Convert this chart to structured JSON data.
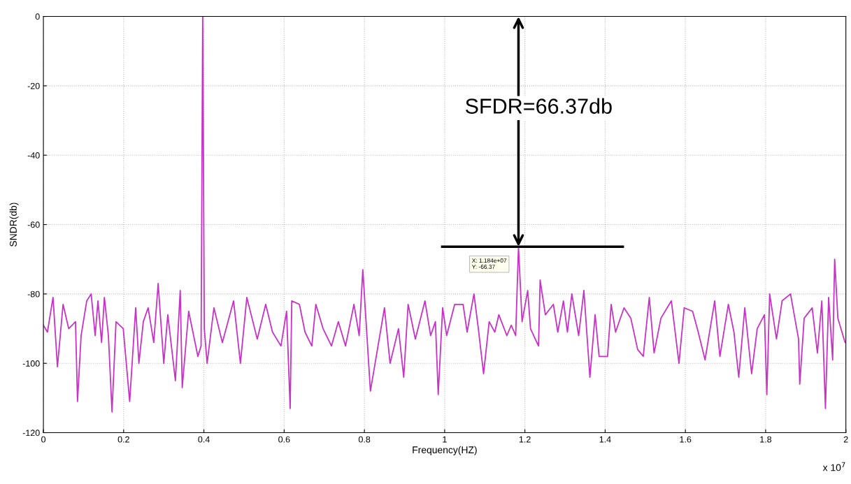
{
  "chart_data": {
    "type": "line",
    "xlabel": "Frequency(HZ)",
    "ylabel": "SNDR(db)",
    "annotations": [
      "SFDR=66.37db",
      {
        "text": "X: 1.184e+07\nY: -66.37",
        "x": 1.184,
        "y": -66.37
      },
      "x 10$^{7}$"
    ],
    "xlim": [
      0,
      2
    ],
    "ylim": [
      -120,
      0
    ],
    "xticks": [
      0,
      0.2,
      0.4,
      0.6,
      0.8,
      1,
      1.2,
      1.4,
      1.6,
      1.8,
      2
    ],
    "yticks": [
      -120,
      -100,
      -80,
      -60,
      -40,
      -20,
      0
    ],
    "grid": true,
    "line_style": "solid",
    "series": [
      {
        "color": "#c633c6",
        "x": [
          0,
          0.01,
          0.024,
          0.035,
          0.049,
          0.063,
          0.08,
          0.085,
          0.094,
          0.108,
          0.119,
          0.129,
          0.136,
          0.145,
          0.152,
          0.162,
          0.171,
          0.181,
          0.199,
          0.215,
          0.23,
          0.238,
          0.249,
          0.261,
          0.275,
          0.286,
          0.3,
          0.31,
          0.329,
          0.341,
          0.346,
          0.362,
          0.385,
          0.393,
          0.397,
          0.401,
          0.408,
          0.425,
          0.446,
          0.474,
          0.491,
          0.507,
          0.533,
          0.554,
          0.571,
          0.592,
          0.606,
          0.615,
          0.619,
          0.638,
          0.652,
          0.669,
          0.679,
          0.697,
          0.718,
          0.735,
          0.753,
          0.774,
          0.787,
          0.796,
          0.815,
          0.85,
          0.864,
          0.885,
          0.898,
          0.909,
          0.927,
          0.951,
          0.965,
          0.977,
          0.984,
          0.995,
          1.005,
          1.025,
          1.046,
          1.056,
          1.073,
          1.084,
          1.097,
          1.111,
          1.125,
          1.135,
          1.155,
          1.166,
          1.177,
          1.184,
          1.193,
          1.207,
          1.214,
          1.234,
          1.238,
          1.251,
          1.271,
          1.282,
          1.296,
          1.306,
          1.317,
          1.334,
          1.347,
          1.362,
          1.375,
          1.385,
          1.406,
          1.415,
          1.426,
          1.447,
          1.464,
          1.481,
          1.495,
          1.51,
          1.522,
          1.539,
          1.565,
          1.584,
          1.597,
          1.618,
          1.632,
          1.649,
          1.673,
          1.686,
          1.707,
          1.721,
          1.733,
          1.748,
          1.765,
          1.779,
          1.797,
          1.803,
          1.81,
          1.827,
          1.841,
          1.862,
          1.882,
          1.885,
          1.896,
          1.916,
          1.929,
          1.94,
          1.949,
          1.957,
          1.967,
          1.972,
          1.98,
          1.998
        ],
        "values": [
          -89,
          -91,
          -81,
          -101,
          -83,
          -90,
          -88,
          -111,
          -92,
          -82,
          -80,
          -92,
          -82,
          -94,
          -81,
          -92,
          -114,
          -88,
          -90,
          -111,
          -84,
          -100,
          -88,
          -84,
          -94,
          -77,
          -100,
          -86,
          -105,
          -79,
          -107,
          -85,
          -98,
          -95,
          0,
          -90,
          -100,
          -84,
          -94,
          -82,
          -100,
          -81,
          -93,
          -83,
          -91,
          -95,
          -85,
          -113,
          -82,
          -83,
          -91,
          -95,
          -83,
          -90,
          -95,
          -88,
          -95,
          -83,
          -92,
          -73,
          -108,
          -84,
          -100,
          -90,
          -104,
          -83,
          -93,
          -82,
          -92,
          -88,
          -109,
          -84,
          -92,
          -83,
          -83,
          -91,
          -80,
          -90,
          -103,
          -88,
          -91,
          -86,
          -92,
          -89,
          -92,
          -66.37,
          -88,
          -79,
          -90,
          -95,
          -76,
          -86,
          -83,
          -91,
          -82,
          -91,
          -80,
          -92,
          -79,
          -104,
          -86,
          -98,
          -98,
          -83,
          -91,
          -84,
          -87,
          -96,
          -98,
          -81,
          -97,
          -87,
          -82,
          -100,
          -84,
          -85,
          -91,
          -99,
          -82,
          -98,
          -83,
          -91,
          -104,
          -84,
          -103,
          -90,
          -86,
          -109,
          -80,
          -93,
          -82,
          -80,
          -93,
          -106,
          -87,
          -84,
          -97,
          -82,
          -113,
          -81,
          -99,
          -70,
          -87,
          -94
        ]
      }
    ]
  }
}
